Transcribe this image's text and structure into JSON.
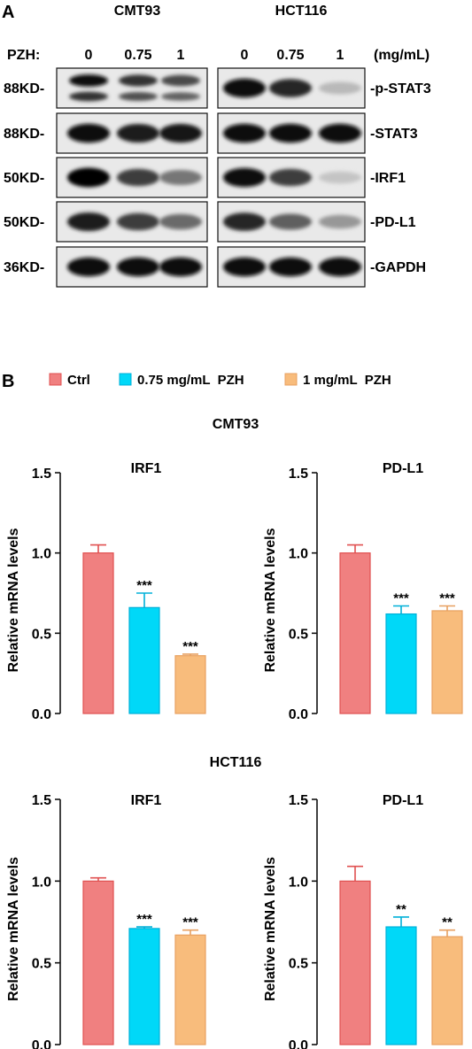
{
  "panel_a": {
    "label": "A",
    "cell_lines": [
      "CMT93",
      "HCT116"
    ],
    "dose_label": "PZH:",
    "doses": [
      "0",
      "0.75",
      "1"
    ],
    "dose_unit": "(mg/mL)",
    "mw_labels": [
      "88KD-",
      "88KD-",
      "50KD-",
      "50KD-",
      "36KD-"
    ],
    "protein_labels": [
      "-p-STAT3",
      "-STAT3",
      "-IRF1",
      "-PD-L1",
      "-GAPDH"
    ],
    "band_intensity": {
      "CMT93": [
        [
          0.95,
          0.8,
          0.7
        ],
        [
          0.95,
          0.9,
          0.92
        ],
        [
          1.0,
          0.75,
          0.5
        ],
        [
          0.9,
          0.75,
          0.55
        ],
        [
          0.95,
          0.95,
          0.95
        ]
      ],
      "HCT116": [
        [
          0.95,
          0.85,
          0.2
        ],
        [
          0.95,
          0.95,
          0.95
        ],
        [
          0.95,
          0.75,
          0.15
        ],
        [
          0.85,
          0.6,
          0.35
        ],
        [
          0.95,
          0.95,
          0.95
        ]
      ]
    }
  },
  "panel_b": {
    "label": "B",
    "legend": [
      {
        "label": "Ctrl",
        "color": "#F08080"
      },
      {
        "label": "0.75 mg/mL  PZH",
        "color": "#00D8F8"
      },
      {
        "label": "1 mg/mL  PZH",
        "color": "#F8BC7C"
      }
    ],
    "group_titles": [
      "CMT93",
      "HCT116"
    ]
  },
  "chart_data": [
    {
      "type": "bar",
      "title": "IRF1",
      "group": "CMT93",
      "ylabel": "Relative mRNA levels",
      "ylim": [
        0,
        1.5
      ],
      "yticks": [
        "0.0",
        "0.5",
        "1.0",
        "1.5"
      ],
      "values": [
        1.0,
        0.66,
        0.36
      ],
      "errors": [
        0.05,
        0.09,
        0.01
      ],
      "annotations": [
        "",
        "***",
        "***"
      ]
    },
    {
      "type": "bar",
      "title": "PD-L1",
      "group": "CMT93",
      "ylabel": "Relative mRNA levels",
      "ylim": [
        0,
        1.5
      ],
      "yticks": [
        "0.0",
        "0.5",
        "1.0",
        "1.5"
      ],
      "values": [
        1.0,
        0.62,
        0.64
      ],
      "errors": [
        0.05,
        0.05,
        0.03
      ],
      "annotations": [
        "",
        "***",
        "***"
      ]
    },
    {
      "type": "bar",
      "title": "IRF1",
      "group": "HCT116",
      "ylabel": "Relative mRNA levels",
      "ylim": [
        0,
        1.5
      ],
      "yticks": [
        "0.0",
        "0.5",
        "1.0",
        "1.5"
      ],
      "values": [
        1.0,
        0.71,
        0.67
      ],
      "errors": [
        0.02,
        0.01,
        0.03
      ],
      "annotations": [
        "",
        "***",
        "***"
      ]
    },
    {
      "type": "bar",
      "title": "PD-L1",
      "group": "HCT116",
      "ylabel": "Relative mRNA levels",
      "ylim": [
        0,
        1.5
      ],
      "yticks": [
        "0.0",
        "0.5",
        "1.0",
        "1.5"
      ],
      "values": [
        1.0,
        0.72,
        0.66
      ],
      "errors": [
        0.09,
        0.06,
        0.04
      ],
      "annotations": [
        "",
        "**",
        "**"
      ]
    }
  ]
}
